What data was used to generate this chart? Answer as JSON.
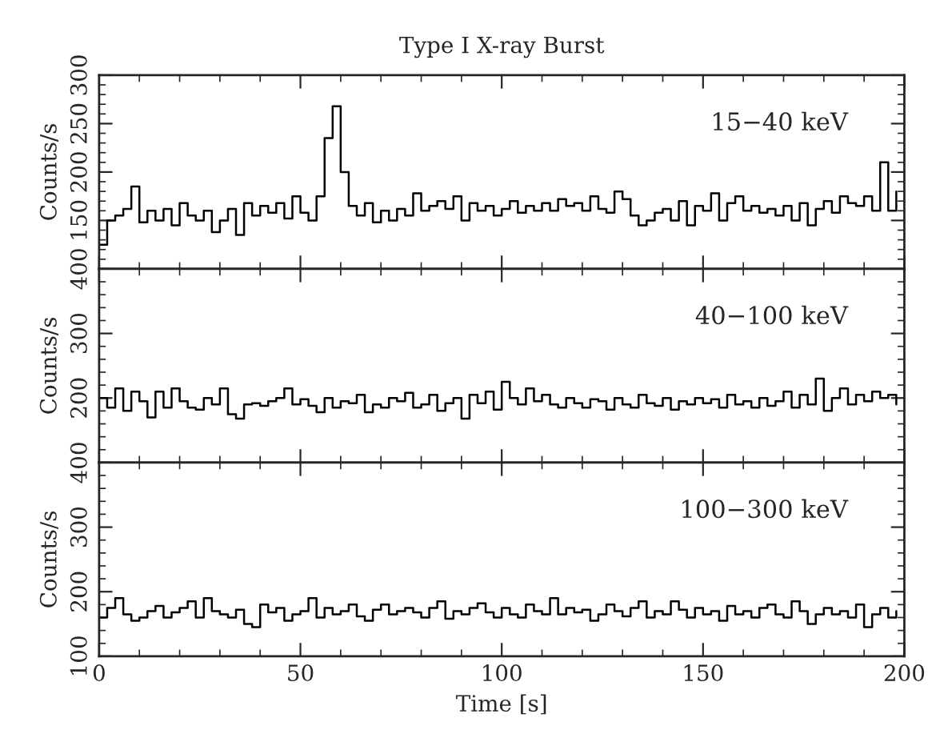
{
  "chart_data": [
    {
      "type": "step",
      "title": "Type I X-ray Burst",
      "ylabel": "Counts/s",
      "annotations": [
        "15−40 keV"
      ],
      "xlim": [
        0,
        200
      ],
      "xticks": [
        0,
        50,
        100,
        150,
        200
      ],
      "ylim": [
        100,
        300
      ],
      "yticks": [
        150,
        200,
        250,
        300
      ],
      "tick_labels": "y",
      "grid": false,
      "x": [
        0,
        2,
        4,
        6,
        8,
        10,
        12,
        14,
        16,
        18,
        20,
        22,
        24,
        26,
        28,
        30,
        32,
        34,
        36,
        38,
        40,
        42,
        44,
        46,
        48,
        50,
        52,
        54,
        56,
        58,
        60,
        62,
        64,
        66,
        68,
        70,
        72,
        74,
        76,
        78,
        80,
        82,
        84,
        86,
        88,
        90,
        92,
        94,
        96,
        98,
        100,
        102,
        104,
        106,
        108,
        110,
        112,
        114,
        116,
        118,
        120,
        122,
        124,
        126,
        128,
        130,
        132,
        134,
        136,
        138,
        140,
        142,
        144,
        146,
        148,
        150,
        152,
        154,
        156,
        158,
        160,
        162,
        164,
        166,
        168,
        170,
        172,
        174,
        176,
        178,
        180,
        182,
        184,
        186,
        188,
        190,
        192,
        194,
        196,
        198
      ],
      "series": [
        {
          "color": "#000000",
          "values": [
            125,
            150,
            155,
            162,
            185,
            148,
            160,
            150,
            162,
            145,
            168,
            155,
            150,
            160,
            138,
            150,
            162,
            135,
            168,
            155,
            165,
            158,
            168,
            152,
            175,
            158,
            150,
            175,
            235,
            268,
            200,
            165,
            155,
            168,
            148,
            160,
            150,
            162,
            155,
            178,
            160,
            165,
            170,
            162,
            175,
            150,
            168,
            160,
            165,
            155,
            162,
            170,
            158,
            165,
            160,
            168,
            160,
            172,
            165,
            168,
            160,
            175,
            162,
            158,
            180,
            172,
            155,
            145,
            150,
            158,
            162,
            150,
            170,
            145,
            165,
            160,
            178,
            150,
            168,
            175,
            160,
            165,
            158,
            162,
            155,
            165,
            150,
            168,
            145,
            162,
            170,
            158,
            175,
            168,
            165,
            175,
            160,
            210,
            160,
            180
          ]
        }
      ]
    },
    {
      "type": "step",
      "ylabel": "Counts/s",
      "annotations": [
        "40−100 keV"
      ],
      "xlim": [
        0,
        200
      ],
      "xticks": [
        0,
        50,
        100,
        150,
        200
      ],
      "ylim": [
        100,
        400
      ],
      "yticks": [
        200,
        300,
        400
      ],
      "tick_labels": "y",
      "grid": false,
      "x": [
        0,
        2,
        4,
        6,
        8,
        10,
        12,
        14,
        16,
        18,
        20,
        22,
        24,
        26,
        28,
        30,
        32,
        34,
        36,
        38,
        40,
        42,
        44,
        46,
        48,
        50,
        52,
        54,
        56,
        58,
        60,
        62,
        64,
        66,
        68,
        70,
        72,
        74,
        76,
        78,
        80,
        82,
        84,
        86,
        88,
        90,
        92,
        94,
        96,
        98,
        100,
        102,
        104,
        106,
        108,
        110,
        112,
        114,
        116,
        118,
        120,
        122,
        124,
        126,
        128,
        130,
        132,
        134,
        136,
        138,
        140,
        142,
        144,
        146,
        148,
        150,
        152,
        154,
        156,
        158,
        160,
        162,
        164,
        166,
        168,
        170,
        172,
        174,
        176,
        178,
        180,
        182,
        184,
        186,
        188,
        190,
        192,
        194,
        196,
        198
      ],
      "series": [
        {
          "color": "#000000",
          "values": [
            200,
            185,
            215,
            180,
            210,
            195,
            170,
            210,
            185,
            215,
            195,
            185,
            182,
            200,
            190,
            215,
            175,
            168,
            190,
            192,
            188,
            195,
            200,
            215,
            190,
            198,
            188,
            178,
            200,
            185,
            195,
            192,
            205,
            178,
            190,
            185,
            200,
            195,
            208,
            185,
            190,
            205,
            180,
            192,
            200,
            168,
            205,
            192,
            210,
            182,
            225,
            200,
            190,
            215,
            195,
            205,
            190,
            185,
            200,
            192,
            185,
            198,
            195,
            182,
            200,
            190,
            185,
            205,
            192,
            188,
            200,
            182,
            195,
            190,
            200,
            192,
            198,
            185,
            205,
            190,
            195,
            185,
            200,
            188,
            195,
            210,
            185,
            205,
            190,
            230,
            180,
            200,
            215,
            190,
            205,
            195,
            210,
            200,
            205,
            190
          ]
        }
      ]
    },
    {
      "type": "step",
      "ylabel": "Counts/s",
      "xlabel": "Time [s]",
      "annotations": [
        "100−300 keV"
      ],
      "xlim": [
        0,
        200
      ],
      "xticks": [
        0,
        50,
        100,
        150,
        200
      ],
      "ylim": [
        100,
        400
      ],
      "yticks": [
        100,
        200,
        300,
        400
      ],
      "grid": false,
      "x": [
        0,
        2,
        4,
        6,
        8,
        10,
        12,
        14,
        16,
        18,
        20,
        22,
        24,
        26,
        28,
        30,
        32,
        34,
        36,
        38,
        40,
        42,
        44,
        46,
        48,
        50,
        52,
        54,
        56,
        58,
        60,
        62,
        64,
        66,
        68,
        70,
        72,
        74,
        76,
        78,
        80,
        82,
        84,
        86,
        88,
        90,
        92,
        94,
        96,
        98,
        100,
        102,
        104,
        106,
        108,
        110,
        112,
        114,
        116,
        118,
        120,
        122,
        124,
        126,
        128,
        130,
        132,
        134,
        136,
        138,
        140,
        142,
        144,
        146,
        148,
        150,
        152,
        154,
        156,
        158,
        160,
        162,
        164,
        166,
        168,
        170,
        172,
        174,
        176,
        178,
        180,
        182,
        184,
        186,
        188,
        190,
        192,
        194,
        196,
        198
      ],
      "series": [
        {
          "color": "#000000",
          "values": [
            160,
            175,
            190,
            165,
            155,
            160,
            170,
            178,
            160,
            168,
            175,
            185,
            160,
            190,
            170,
            165,
            160,
            172,
            150,
            145,
            180,
            168,
            175,
            155,
            165,
            170,
            190,
            160,
            175,
            165,
            170,
            180,
            162,
            155,
            172,
            180,
            165,
            170,
            175,
            168,
            160,
            175,
            185,
            158,
            170,
            165,
            175,
            182,
            168,
            160,
            175,
            165,
            160,
            180,
            170,
            165,
            190,
            165,
            175,
            168,
            172,
            155,
            165,
            180,
            170,
            162,
            175,
            185,
            160,
            170,
            165,
            185,
            172,
            160,
            175,
            165,
            170,
            155,
            178,
            165,
            170,
            160,
            175,
            180,
            165,
            160,
            185,
            170,
            150,
            165,
            175,
            165,
            170,
            160,
            180,
            145,
            165,
            175,
            160,
            170
          ]
        }
      ]
    }
  ]
}
